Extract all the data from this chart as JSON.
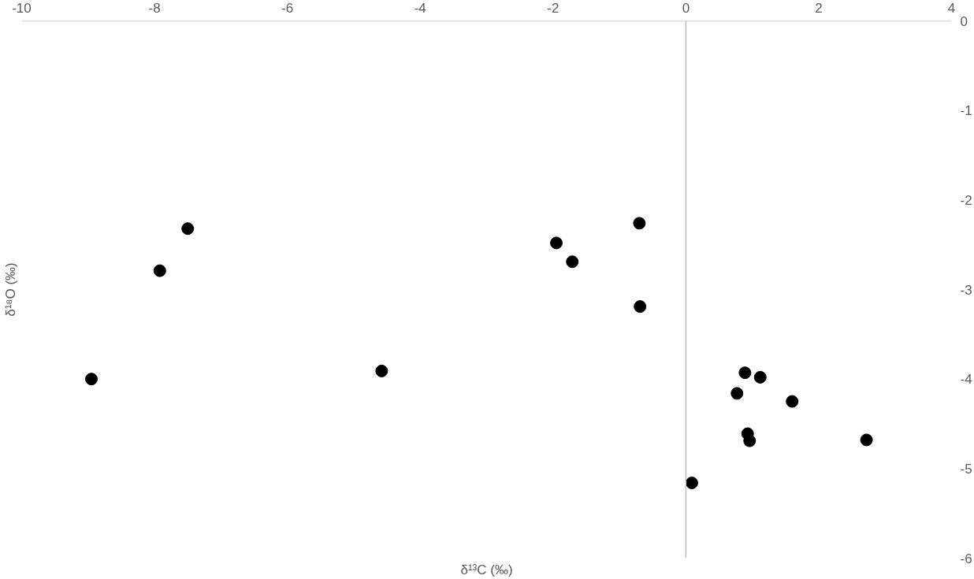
{
  "chart_data": {
    "type": "scatter",
    "xlabel": "δ¹³C (‰)",
    "ylabel": "δ¹⁸O (‰)",
    "xlim": [
      -10,
      4
    ],
    "ylim": [
      -6,
      0
    ],
    "xticks": [
      -10,
      -8,
      -6,
      -4,
      -2,
      0,
      2,
      4
    ],
    "yticks": [
      0,
      -1,
      -2,
      -3,
      -4,
      -5,
      -6
    ],
    "marker": "circle",
    "series": [
      {
        "color": "#000000",
        "x": [
          -7.5,
          -7.92,
          -8.95,
          -4.58,
          -0.7,
          -1.95,
          -1.71,
          -0.69,
          0.89,
          1.12,
          0.77,
          1.6,
          0.93,
          0.96,
          2.72,
          0.09
        ],
        "values": [
          -2.32,
          -2.79,
          -4.0,
          -3.91,
          -2.26,
          -2.48,
          -2.69,
          -3.19,
          -3.93,
          -3.98,
          -4.16,
          -4.25,
          -4.61,
          -4.69,
          -4.68,
          -5.16
        ]
      }
    ]
  }
}
